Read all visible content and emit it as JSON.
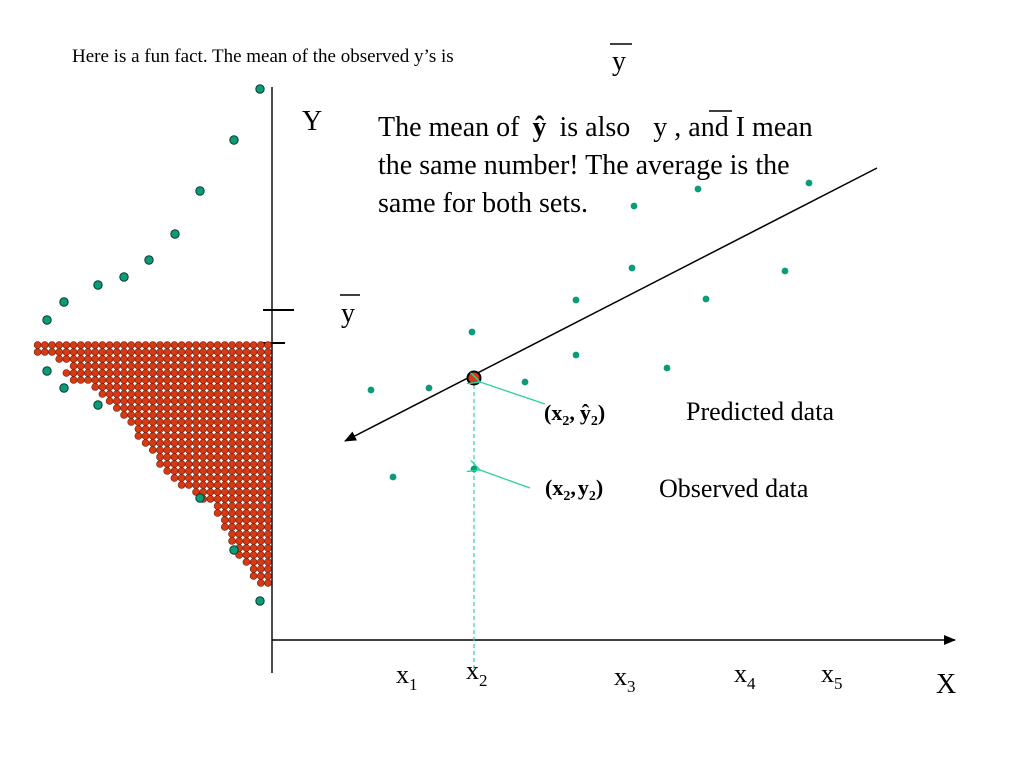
{
  "fun_fact": {
    "text": "Here is a fun fact.  The mean of the observed y’s is",
    "symbol": "y"
  },
  "callout": {
    "line1_before": "The mean of",
    "line1_yhat": "ŷ",
    "line1_mid": "is also",
    "line1_ybar": "y",
    "line1_after": ", and I mean",
    "line2": "the same number!  The average is the",
    "line3": "same for both sets."
  },
  "axes": {
    "y_label": "Y",
    "x_label": "X",
    "ybar_label": "y"
  },
  "x_ticks": [
    {
      "base": "x",
      "sub": "1"
    },
    {
      "base": "x",
      "sub": "2"
    },
    {
      "base": "x",
      "sub": "3"
    },
    {
      "base": "x",
      "sub": "4"
    },
    {
      "base": "x",
      "sub": "5"
    }
  ],
  "predicted": {
    "open": "(",
    "x": "x",
    "x_sub": "2",
    "comma": ",",
    "y": "ŷ",
    "y_sub": "2",
    "close": ")",
    "label": "Predicted data"
  },
  "observed": {
    "open": "(",
    "x": "x",
    "x_sub": "2",
    "comma": ",",
    "y": "y",
    "y_sub": "2",
    "close": ")",
    "label": "Observed  data"
  },
  "colors": {
    "point": "#0a9c78",
    "point_edge": "#0b3a2e",
    "histogram": "#d63a14",
    "histogram_edge": "#6b1a08",
    "axis": "#000000",
    "connector": "#2fd0a3"
  }
}
